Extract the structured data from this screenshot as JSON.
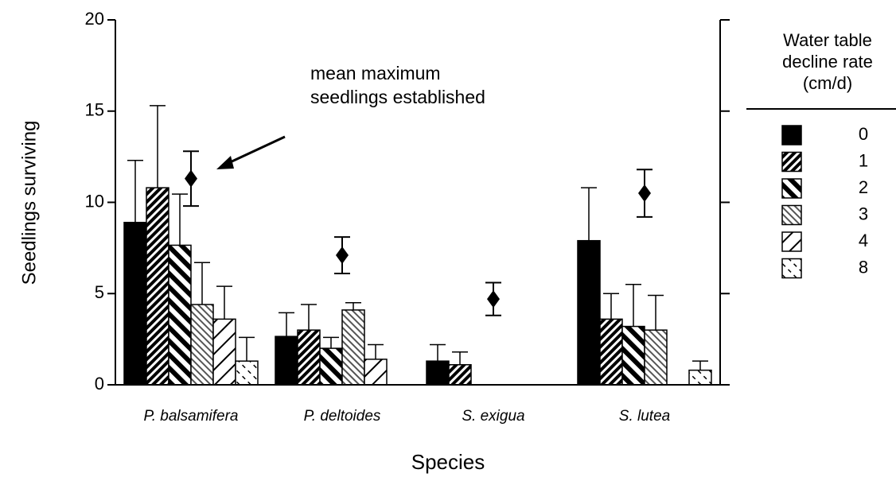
{
  "chart_data": {
    "type": "bar",
    "ylabel": "Seedlings surviving",
    "xlabel": "Species",
    "categories": [
      "P. balsamifera",
      "P. deltoides",
      "S. exigua",
      "S. lutea"
    ],
    "ylim": [
      0,
      20
    ],
    "yticks": [
      0,
      5,
      10,
      15,
      20
    ],
    "legend_title": [
      "Water table",
      "decline rate",
      "(cm/d)"
    ],
    "legend": "right",
    "series": [
      {
        "name": "0",
        "color": "solid",
        "values": [
          8.9,
          2.65,
          1.3,
          7.9
        ],
        "errors": [
          3.4,
          1.3,
          0.9,
          2.9
        ]
      },
      {
        "name": "1",
        "color": "dense-diag",
        "values": [
          10.8,
          3.0,
          1.1,
          3.6
        ],
        "errors": [
          4.5,
          1.4,
          0.7,
          1.4
        ]
      },
      {
        "name": "2",
        "color": "thick-diag",
        "values": [
          7.65,
          2.0,
          0,
          3.2
        ],
        "errors": [
          2.8,
          0.6,
          0,
          2.3
        ]
      },
      {
        "name": "3",
        "color": "dots",
        "values": [
          4.4,
          4.1,
          0,
          3.0
        ],
        "errors": [
          2.3,
          0.4,
          0,
          1.9
        ]
      },
      {
        "name": "4",
        "color": "sparse-diag",
        "values": [
          3.6,
          1.4,
          0,
          0
        ],
        "errors": [
          1.8,
          0.8,
          0,
          0
        ]
      },
      {
        "name": "8",
        "color": "light",
        "values": [
          1.3,
          0,
          0,
          0.8
        ],
        "errors": [
          1.3,
          0,
          0,
          0.5
        ]
      }
    ],
    "means": {
      "values": [
        11.3,
        7.1,
        4.7,
        10.5
      ],
      "errors": [
        1.5,
        1.0,
        0.9,
        1.3
      ]
    },
    "annotation": [
      "mean  maximum",
      "seedlings established"
    ]
  }
}
